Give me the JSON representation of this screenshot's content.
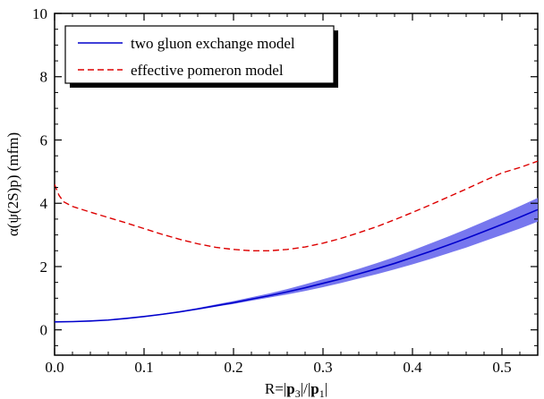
{
  "chart_data": {
    "type": "line",
    "title": "",
    "xlabel": "R=|p₃|/|p₁|",
    "xlabel_parts": {
      "prefix": "R=|",
      "p1": "p",
      "sub1": "3",
      "mid": "|/|",
      "p2": "p",
      "sub2": "1",
      "suffix": "|"
    },
    "ylabel": "α(ψ(2S)p) (mfm)",
    "xlim": [
      0.0,
      0.54
    ],
    "ylim": [
      -0.8,
      10
    ],
    "xticks": [
      0.0,
      0.1,
      0.2,
      0.3,
      0.4,
      0.5
    ],
    "xtick_labels": [
      "0.0",
      "0.1",
      "0.2",
      "0.3",
      "0.4",
      "0.5"
    ],
    "yticks": [
      0,
      2,
      4,
      6,
      8,
      10
    ],
    "ytick_labels": [
      "0",
      "2",
      "4",
      "6",
      "8",
      "10"
    ],
    "grid": false,
    "legend_position": "top-left",
    "series": [
      {
        "name": "two gluon exchange model",
        "style": "solid",
        "color": "#0000cc",
        "band_color": "#7777ee",
        "x": [
          0.0,
          0.02,
          0.04,
          0.06,
          0.08,
          0.1,
          0.12,
          0.14,
          0.16,
          0.18,
          0.2,
          0.22,
          0.24,
          0.26,
          0.28,
          0.3,
          0.32,
          0.34,
          0.36,
          0.38,
          0.4,
          0.42,
          0.44,
          0.46,
          0.48,
          0.5,
          0.52,
          0.54
        ],
        "y": [
          0.25,
          0.26,
          0.28,
          0.31,
          0.36,
          0.42,
          0.49,
          0.57,
          0.66,
          0.76,
          0.86,
          0.97,
          1.08,
          1.2,
          1.33,
          1.47,
          1.61,
          1.77,
          1.93,
          2.1,
          2.29,
          2.48,
          2.68,
          2.89,
          3.11,
          3.33,
          3.56,
          3.8
        ],
        "band_low": [
          0.25,
          0.26,
          0.28,
          0.31,
          0.36,
          0.41,
          0.48,
          0.56,
          0.64,
          0.73,
          0.82,
          0.92,
          1.02,
          1.12,
          1.23,
          1.35,
          1.48,
          1.62,
          1.76,
          1.91,
          2.07,
          2.24,
          2.42,
          2.6,
          2.8,
          3.0,
          3.2,
          3.42
        ],
        "band_high": [
          0.25,
          0.26,
          0.28,
          0.32,
          0.37,
          0.43,
          0.51,
          0.59,
          0.69,
          0.8,
          0.91,
          1.03,
          1.15,
          1.29,
          1.44,
          1.6,
          1.76,
          1.93,
          2.11,
          2.3,
          2.51,
          2.73,
          2.95,
          3.18,
          3.42,
          3.66,
          3.91,
          4.17
        ]
      },
      {
        "name": "effective pomeron model",
        "style": "dashed",
        "color": "#dd0000",
        "x": [
          0.0,
          0.002,
          0.005,
          0.01,
          0.02,
          0.04,
          0.06,
          0.08,
          0.1,
          0.12,
          0.14,
          0.16,
          0.18,
          0.2,
          0.22,
          0.24,
          0.26,
          0.28,
          0.3,
          0.32,
          0.34,
          0.36,
          0.38,
          0.4,
          0.42,
          0.44,
          0.46,
          0.48,
          0.5,
          0.52,
          0.54
        ],
        "y": [
          4.6,
          4.45,
          4.25,
          4.05,
          3.9,
          3.72,
          3.55,
          3.38,
          3.2,
          3.02,
          2.86,
          2.72,
          2.61,
          2.54,
          2.5,
          2.5,
          2.54,
          2.62,
          2.74,
          2.89,
          3.07,
          3.26,
          3.48,
          3.71,
          3.95,
          4.2,
          4.45,
          4.71,
          4.96,
          5.13,
          5.33
        ]
      }
    ]
  }
}
